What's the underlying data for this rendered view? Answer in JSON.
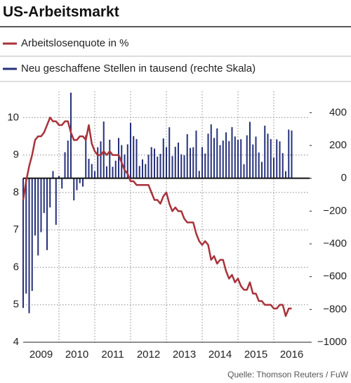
{
  "chart_data": {
    "type": "combo",
    "title": "US-Arbeitsmarkt",
    "source": "Quelle: Thomson Reuters / FuW",
    "x": [
      2009,
      2009.083,
      2009.167,
      2009.25,
      2009.333,
      2009.417,
      2009.5,
      2009.583,
      2009.667,
      2009.75,
      2009.833,
      2009.917,
      2010,
      2010.083,
      2010.167,
      2010.25,
      2010.333,
      2010.417,
      2010.5,
      2010.583,
      2010.667,
      2010.75,
      2010.833,
      2010.917,
      2011,
      2011.083,
      2011.167,
      2011.25,
      2011.333,
      2011.417,
      2011.5,
      2011.583,
      2011.667,
      2011.75,
      2011.833,
      2011.917,
      2012,
      2012.083,
      2012.167,
      2012.25,
      2012.333,
      2012.417,
      2012.5,
      2012.583,
      2012.667,
      2012.75,
      2012.833,
      2012.917,
      2013,
      2013.083,
      2013.167,
      2013.25,
      2013.333,
      2013.417,
      2013.5,
      2013.583,
      2013.667,
      2013.75,
      2013.833,
      2013.917,
      2014,
      2014.083,
      2014.167,
      2014.25,
      2014.333,
      2014.417,
      2014.5,
      2014.583,
      2014.667,
      2014.75,
      2014.833,
      2014.917,
      2015,
      2015.083,
      2015.167,
      2015.25,
      2015.333,
      2015.417,
      2015.5,
      2015.583,
      2015.667,
      2015.75,
      2015.833,
      2015.917,
      2016,
      2016.083,
      2016.167,
      2016.25,
      2016.333,
      2016.417,
      2016.5
    ],
    "series": [
      {
        "name": "Arbeitslosenquote in %",
        "type": "line",
        "color": "#a8323a",
        "values": [
          7.8,
          8.3,
          8.7,
          9.0,
          9.4,
          9.5,
          9.5,
          9.6,
          9.8,
          10.0,
          9.9,
          9.9,
          9.8,
          9.8,
          9.9,
          9.9,
          9.6,
          9.4,
          9.4,
          9.5,
          9.5,
          9.4,
          9.8,
          9.3,
          9.1,
          9.0,
          9.0,
          9.1,
          9.0,
          9.1,
          9.0,
          9.0,
          9.0,
          8.8,
          8.6,
          8.5,
          8.3,
          8.3,
          8.2,
          8.2,
          8.2,
          8.2,
          8.2,
          8.0,
          7.8,
          7.8,
          7.7,
          7.9,
          8.0,
          7.7,
          7.5,
          7.6,
          7.5,
          7.5,
          7.3,
          7.2,
          7.2,
          7.2,
          6.9,
          6.7,
          6.6,
          6.7,
          6.6,
          6.2,
          6.3,
          6.1,
          6.2,
          6.2,
          5.9,
          5.7,
          5.8,
          5.6,
          5.7,
          5.5,
          5.4,
          5.4,
          5.6,
          5.3,
          5.3,
          5.1,
          5.1,
          5.0,
          5.0,
          5.0,
          4.9,
          4.9,
          5.0,
          5.0,
          4.7,
          4.9,
          4.9
        ]
      },
      {
        "name": "Neu geschaffene Stellen in tausend (rechte Skala)",
        "type": "bar",
        "axis": "y2",
        "color": "#25307a",
        "values": [
          -791,
          -703,
          -823,
          -687,
          -349,
          -471,
          -329,
          -212,
          -438,
          -178,
          44,
          -284,
          15,
          -63,
          159,
          230,
          522,
          -135,
          -73,
          -30,
          -51,
          262,
          119,
          87,
          43,
          189,
          225,
          346,
          73,
          235,
          70,
          107,
          246,
          202,
          146,
          207,
          338,
          257,
          239,
          75,
          115,
          87,
          143,
          190,
          181,
          132,
          149,
          243,
          190,
          311,
          135,
          192,
          218,
          146,
          140,
          269,
          185,
          189,
          291,
          45,
          190,
          151,
          272,
          329,
          246,
          304,
          202,
          230,
          280,
          227,
          312,
          255,
          234,
          238,
          86,
          262,
          344,
          206,
          254,
          157,
          100,
          321,
          272,
          239,
          126,
          237,
          225,
          153,
          43,
          297,
          291
        ]
      }
    ],
    "xlim": [
      2009,
      2017
    ],
    "xticks": [
      {
        "value": 2009.5,
        "label": "2009"
      },
      {
        "value": 2010.5,
        "label": "2010"
      },
      {
        "value": 2011.5,
        "label": "2011"
      },
      {
        "value": 2012.5,
        "label": "2012"
      },
      {
        "value": 2013.5,
        "label": "2013"
      },
      {
        "value": 2014.5,
        "label": "2014"
      },
      {
        "value": 2015.5,
        "label": "2015"
      },
      {
        "value": 2016.5,
        "label": "2016"
      }
    ],
    "xgrid": [
      2010,
      2011,
      2012,
      2013,
      2014,
      2015,
      2016
    ],
    "ylim": [
      4,
      10.7
    ],
    "yticks": [
      4,
      5,
      6,
      7,
      8,
      9,
      10
    ],
    "y2lim": [
      -1000,
      530
    ],
    "y2ticks": [
      400,
      200,
      0,
      {
        "value": -200,
        "label": "−200"
      },
      {
        "value": -400,
        "label": "−400"
      },
      {
        "value": -600,
        "label": "−600"
      },
      {
        "value": -800,
        "label": "−800"
      },
      {
        "value": -1000,
        "label": "−1000"
      }
    ],
    "grid": true
  }
}
